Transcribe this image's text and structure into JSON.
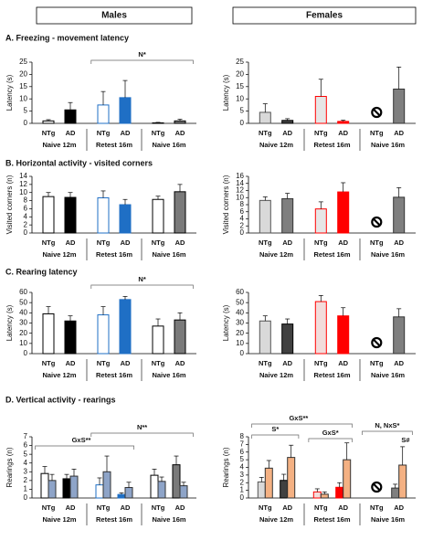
{
  "headers": [
    "Males",
    "Females"
  ],
  "sections": [
    "A. Freezing - movement latency",
    "B. Horizontal activity - visited corners",
    "C. Rearing latency",
    "D. Vertical activity - rearings"
  ],
  "chart_data": [
    {
      "type": "bar",
      "ylabel": "Latency (s)",
      "categories": [
        "NTg",
        "AD",
        "NTg",
        "AD",
        "NTg",
        "AD"
      ],
      "groups": [
        "Naive 12m",
        "Retest 16m",
        "Naive 16m"
      ],
      "ylim": [
        0,
        25
      ],
      "yticks": [
        0,
        5,
        10,
        15,
        20,
        25
      ],
      "series": [
        {
          "colors": [
            "#ffffff",
            "#000000",
            "#ffffff",
            "#1f6fc5",
            "#ffffff",
            "#7a7a7a"
          ],
          "edgecolors": [
            "#000000",
            "#000000",
            "#1f6fc5",
            "#1f6fc5",
            "#000000",
            "#000000"
          ],
          "values": [
            1,
            5.5,
            7.5,
            10.5,
            0.2,
            1
          ],
          "errors": [
            0.5,
            3,
            5.5,
            7,
            0.2,
            0.7
          ]
        }
      ],
      "annotations": [
        "N*"
      ]
    },
    {
      "type": "bar",
      "ylabel": "Latency (s)",
      "categories": [
        "NTg",
        "AD",
        "NTg",
        "AD",
        "NTg",
        "AD"
      ],
      "groups": [
        "Naive 12m",
        "Retest 16m",
        "Naive 16m"
      ],
      "ylim": [
        0,
        25
      ],
      "yticks": [
        0,
        5,
        10,
        15,
        20,
        25
      ],
      "series": [
        {
          "colors": [
            "#d9d9d9",
            "#404040",
            "#e6e6e6",
            "#ff0000",
            "#d9d9d9",
            "#7f7f7f"
          ],
          "edgecolors": [
            "#555555",
            "#000000",
            "#ff0000",
            "#ff0000",
            "#555555",
            "#333333"
          ],
          "values": [
            4.5,
            1.2,
            11,
            0.8,
            null,
            14
          ],
          "errors": [
            3.5,
            0.7,
            7,
            0.5,
            null,
            9
          ]
        }
      ],
      "annotations": []
    },
    {
      "type": "bar",
      "ylabel": "Visited corners (n)",
      "categories": [
        "NTg",
        "AD",
        "NTg",
        "AD",
        "NTg",
        "AD"
      ],
      "groups": [
        "Naive 12m",
        "Retest 16m",
        "Naive 16m"
      ],
      "ylim": [
        0,
        14
      ],
      "yticks": [
        0,
        2,
        4,
        6,
        8,
        10,
        12,
        14
      ],
      "series": [
        {
          "colors": [
            "#ffffff",
            "#000000",
            "#ffffff",
            "#1f6fc5",
            "#ffffff",
            "#7a7a7a"
          ],
          "edgecolors": [
            "#000000",
            "#000000",
            "#1f6fc5",
            "#1f6fc5",
            "#000000",
            "#000000"
          ],
          "values": [
            9,
            8.8,
            8.7,
            7,
            8.3,
            10.2
          ],
          "errors": [
            1,
            1.2,
            1.7,
            1.3,
            0.8,
            1.8
          ]
        }
      ],
      "annotations": []
    },
    {
      "type": "bar",
      "ylabel": "Visited corners (n)",
      "categories": [
        "NTg",
        "AD",
        "NTg",
        "AD",
        "NTg",
        "AD"
      ],
      "groups": [
        "Naive 12m",
        "Retest 16m",
        "Naive 16m"
      ],
      "ylim": [
        0,
        16
      ],
      "yticks": [
        0,
        2,
        4,
        6,
        8,
        10,
        12,
        14,
        16
      ],
      "series": [
        {
          "colors": [
            "#d9d9d9",
            "#7f7f7f",
            "#e6e6e6",
            "#ff0000",
            "#d9d9d9",
            "#7f7f7f"
          ],
          "edgecolors": [
            "#555555",
            "#333333",
            "#ff0000",
            "#ff0000",
            "#555555",
            "#333333"
          ],
          "values": [
            9.2,
            9.7,
            6.8,
            11.6,
            null,
            10.1
          ],
          "errors": [
            1,
            1.5,
            2,
            2.6,
            null,
            2.7
          ]
        }
      ],
      "annotations": []
    },
    {
      "type": "bar",
      "ylabel": "Latency (s)",
      "categories": [
        "NTg",
        "AD",
        "NTg",
        "AD",
        "NTg",
        "AD"
      ],
      "groups": [
        "Naive 12m",
        "Retest 16m",
        "Naive 16m"
      ],
      "ylim": [
        0,
        60
      ],
      "yticks": [
        0,
        10,
        20,
        30,
        40,
        50,
        60
      ],
      "series": [
        {
          "colors": [
            "#ffffff",
            "#000000",
            "#ffffff",
            "#1f6fc5",
            "#ffffff",
            "#7a7a7a"
          ],
          "edgecolors": [
            "#000000",
            "#000000",
            "#1f6fc5",
            "#1f6fc5",
            "#000000",
            "#000000"
          ],
          "values": [
            39,
            32,
            38,
            53,
            27,
            33
          ],
          "errors": [
            7,
            5,
            8,
            3,
            7,
            7
          ]
        }
      ],
      "annotations": [
        "N*"
      ]
    },
    {
      "type": "bar",
      "ylabel": "Latency (s)",
      "categories": [
        "NTg",
        "AD",
        "NTg",
        "AD",
        "NTg",
        "AD"
      ],
      "groups": [
        "Naive 12m",
        "Retest 16m",
        "Naive 16m"
      ],
      "ylim": [
        0,
        60
      ],
      "yticks": [
        0,
        10,
        20,
        30,
        40,
        50,
        60
      ],
      "series": [
        {
          "colors": [
            "#d9d9d9",
            "#404040",
            "#f2dcdb",
            "#ff0000",
            "#d9d9d9",
            "#7f7f7f"
          ],
          "edgecolors": [
            "#555555",
            "#000000",
            "#ff0000",
            "#ff0000",
            "#555555",
            "#333333"
          ],
          "values": [
            32,
            29,
            51,
            37,
            null,
            36
          ],
          "errors": [
            5,
            5,
            6,
            8,
            null,
            8
          ]
        }
      ],
      "annotations": []
    },
    {
      "type": "bar",
      "ylabel": "Rearings (n)",
      "categories": [
        "NTg",
        "AD",
        "NTg",
        "AD",
        "NTg",
        "AD"
      ],
      "groups": [
        "Naive 12m",
        "Retest 16m",
        "Naive 16m"
      ],
      "ylim": [
        0,
        7
      ],
      "yticks": [
        0,
        1,
        2,
        3,
        4,
        5,
        6,
        7
      ],
      "series": [
        {
          "colors": [
            "#ffffff",
            "#000000",
            "#ffffff",
            "#1f6fc5",
            "#ffffff",
            "#7a7a7a"
          ],
          "edgecolors": [
            "#000000",
            "#000000",
            "#1f6fc5",
            "#1f6fc5",
            "#000000",
            "#000000"
          ],
          "values": [
            2.8,
            2.2,
            1.5,
            0.4,
            2.6,
            3.8
          ],
          "errors": [
            0.8,
            0.5,
            0.8,
            0.2,
            0.7,
            1
          ]
        },
        {
          "colors": [
            "#8ea4c8",
            "#8ea4c8",
            "#8ea4c8",
            "#8ea4c8",
            "#8ea4c8",
            "#8ea4c8"
          ],
          "edgecolors": [
            "#333333",
            "#333333",
            "#333333",
            "#333333",
            "#333333",
            "#333333"
          ],
          "values": [
            2,
            2.5,
            3,
            1.2,
            1.9,
            1.4
          ],
          "errors": [
            0.7,
            0.8,
            1.8,
            0.6,
            0.5,
            0.4
          ]
        }
      ],
      "annotations": [
        "GxS**",
        "N**"
      ]
    },
    {
      "type": "bar",
      "ylabel": "Rearings (n)",
      "categories": [
        "NTg",
        "AD",
        "NTg",
        "AD",
        "NTg",
        "AD"
      ],
      "groups": [
        "Naive 12m",
        "Retest 16m",
        "Naive 16m"
      ],
      "ylim": [
        0,
        8
      ],
      "yticks": [
        0,
        1,
        2,
        3,
        4,
        5,
        6,
        7,
        8
      ],
      "series": [
        {
          "colors": [
            "#d9d9d9",
            "#404040",
            "#f2dcdb",
            "#ff0000",
            "#d9d9d9",
            "#7f7f7f"
          ],
          "edgecolors": [
            "#555555",
            "#000000",
            "#ff0000",
            "#ff0000",
            "#555555",
            "#333333"
          ],
          "values": [
            2.1,
            2.3,
            0.8,
            1.4,
            null,
            1.3
          ],
          "errors": [
            0.6,
            0.8,
            0.4,
            0.6,
            null,
            0.5
          ]
        },
        {
          "colors": [
            "#f4b183",
            "#f4b183",
            "#f4b183",
            "#f4b183",
            "#f4b183",
            "#f4b183"
          ],
          "edgecolors": [
            "#333333",
            "#333333",
            "#333333",
            "#333333",
            "#333333",
            "#333333"
          ],
          "values": [
            3.9,
            5.3,
            0.5,
            5,
            null,
            4.3
          ],
          "errors": [
            1,
            1.6,
            0.3,
            2.2,
            null,
            2.4
          ]
        }
      ],
      "annotations": [
        "GxS**",
        "S*",
        "GxS*",
        "N, NxS*",
        "S#"
      ]
    }
  ]
}
